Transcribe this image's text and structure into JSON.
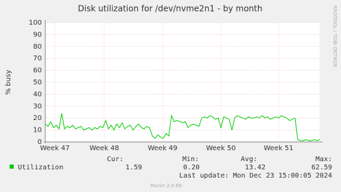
{
  "chart_data": {
    "type": "line",
    "title": "Disk utilization for /dev/nvme2n1 - by month",
    "y_label": "% busy",
    "side_label": "RRDTOOL / TOBI OETIKER",
    "xlim": [
      0,
      100
    ],
    "xticks": [
      {
        "value": 3.5,
        "label": "Week 47"
      },
      {
        "value": 21.5,
        "label": "Week 48"
      },
      {
        "value": 42.75,
        "label": "Week 49"
      },
      {
        "value": 64,
        "label": "Week 50"
      },
      {
        "value": 85,
        "label": "Week 51"
      }
    ],
    "ylim": [
      0,
      100
    ],
    "yticks": [
      0,
      10,
      20,
      30,
      40,
      50,
      60,
      70,
      80,
      90,
      100
    ],
    "grid": true,
    "series": [
      {
        "name": "Utilization",
        "color": "#00cc00",
        "values": [
          15,
          13,
          17,
          12,
          14,
          11,
          24,
          11,
          13,
          12,
          14,
          11,
          12,
          13,
          10,
          11,
          12,
          10,
          12,
          11,
          13,
          12,
          18,
          11,
          14,
          10,
          15,
          12,
          16,
          11,
          13,
          14,
          10,
          13,
          15,
          12,
          11,
          13,
          12,
          5,
          3,
          6,
          4,
          3,
          7,
          5,
          22,
          17,
          18,
          17,
          16,
          17,
          12,
          14,
          15,
          14,
          13,
          20,
          21,
          20,
          22,
          21,
          19,
          20,
          12,
          21,
          20,
          19,
          10,
          20,
          22,
          21,
          20,
          19,
          21,
          20,
          20,
          21,
          20,
          22,
          20,
          21,
          19,
          20,
          21,
          20,
          22,
          21,
          20,
          18,
          19,
          20,
          2,
          1,
          1,
          2,
          1,
          1,
          2,
          1,
          2
        ]
      }
    ],
    "stats": {
      "headers": [
        "Cur:",
        "Min:",
        "Avg:",
        "Max:"
      ],
      "values": [
        "1.59",
        "0.20",
        "13.42",
        "62.59"
      ]
    },
    "last_update": "Last update: Mon Dec 23 15:00:05 2024",
    "footer": "Munin 2.0.69"
  }
}
